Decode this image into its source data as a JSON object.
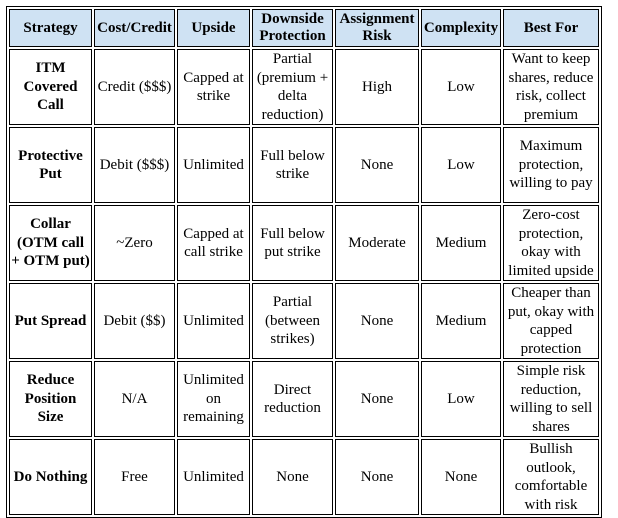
{
  "table": {
    "headers": [
      "Strategy",
      "Cost/Credit",
      "Upside",
      "Downside Protection",
      "Assignment Risk",
      "Complexity",
      "Best For"
    ],
    "rows": [
      [
        "ITM Covered Call",
        "Credit ($$$)",
        "Capped at strike",
        "Partial (premium + delta reduction)",
        "High",
        "Low",
        "Want to keep shares, reduce risk, collect premium"
      ],
      [
        "Protective Put",
        "Debit ($$$)",
        "Unlimited",
        "Full below strike",
        "None",
        "Low",
        "Maximum protection, willing to pay"
      ],
      [
        "Collar (OTM call + OTM put)",
        "~Zero",
        "Capped at call strike",
        "Full below put strike",
        "Moderate",
        "Medium",
        "Zero-cost protection, okay with limited upside"
      ],
      [
        "Put Spread",
        "Debit ($$)",
        "Unlimited",
        "Partial (between strikes)",
        "None",
        "Medium",
        "Cheaper than put, okay with capped protection"
      ],
      [
        "Reduce Position Size",
        "N/A",
        "Unlimited on remaining",
        "Direct reduction",
        "None",
        "Low",
        "Simple risk reduction, willing to sell shares"
      ],
      [
        "Do Nothing",
        "Free",
        "Unlimited",
        "None",
        "None",
        "None",
        "Bullish outlook, comfortable with risk"
      ]
    ]
  }
}
